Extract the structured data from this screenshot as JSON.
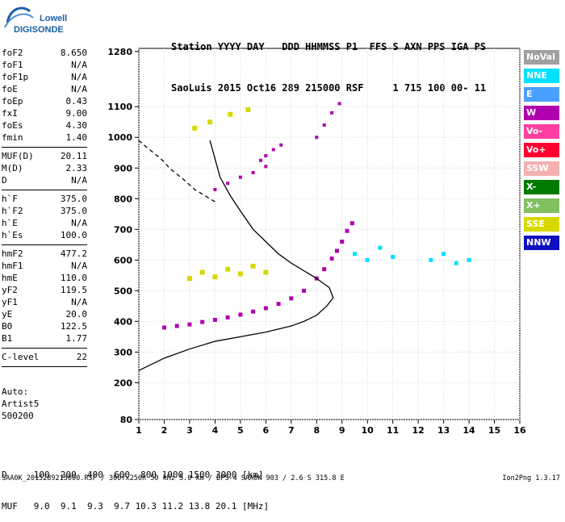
{
  "logo": {
    "line1": "Lowell",
    "line2": "DIGISONDE"
  },
  "header": {
    "line1": "Station YYYY DAY   DDD HHMMSS P1  FFS S AXN PPS IGA PS",
    "line2": "SaoLuis 2015 Oct16 289 215000 RSF     1 715 100 00- 11"
  },
  "params": [
    {
      "name": "foF2",
      "value": "8.650"
    },
    {
      "name": "foF1",
      "value": "N/A"
    },
    {
      "name": "foF1p",
      "value": "N/A"
    },
    {
      "name": "foE",
      "value": "N/A"
    },
    {
      "name": "foEp",
      "value": "0.43"
    },
    {
      "name": "fxI",
      "value": "9.00"
    },
    {
      "name": "foEs",
      "value": "4.30"
    },
    {
      "name": "fmin",
      "value": "1.40"
    },
    {
      "name": "MUF(D)",
      "value": "20.11"
    },
    {
      "name": "M(D)",
      "value": "2.33"
    },
    {
      "name": "D",
      "value": "N/A"
    },
    {
      "name": "h`F",
      "value": "375.0"
    },
    {
      "name": "h`F2",
      "value": "375.0"
    },
    {
      "name": "h`E",
      "value": "N/A"
    },
    {
      "name": "h`Es",
      "value": "100.0"
    },
    {
      "name": "hmF2",
      "value": "477.2"
    },
    {
      "name": "hmF1",
      "value": "N/A"
    },
    {
      "name": "hmE",
      "value": "110.0"
    },
    {
      "name": "yF2",
      "value": "119.5"
    },
    {
      "name": "yF1",
      "value": "N/A"
    },
    {
      "name": "yE",
      "value": "20.0"
    },
    {
      "name": "B0",
      "value": "122.5"
    },
    {
      "name": "B1",
      "value": "1.77"
    },
    {
      "name": "C-level",
      "value": "22"
    }
  ],
  "auto": {
    "line1": "Auto:",
    "line2": "Artist5",
    "line3": "500200"
  },
  "muf_table": {
    "line1": "D     100  200  400  600  800 1000 1500 3000 [km]",
    "line2": "MUF   9.0  9.1  9.3  9.7 10.3 11.2 13.8 20.1 [MHz]"
  },
  "footer": "SAA0K_2015289215000.RSF / 300fx256h 50 kHz 5.0 km / DPS-4 SAA0K 903 / 2.6 S 315.8 E",
  "version": "Ion2Png 1.3.17",
  "legend": [
    {
      "label": "NoVal",
      "color": "#a0a0a0"
    },
    {
      "label": "NNE",
      "color": "#00e0ff"
    },
    {
      "label": "E",
      "color": "#4aa0ff"
    },
    {
      "label": "W",
      "color": "#b000b0"
    },
    {
      "label": "Vo-",
      "color": "#ff40a0"
    },
    {
      "label": "Vo+",
      "color": "#ff0030"
    },
    {
      "label": "SSW",
      "color": "#f4b0b0"
    },
    {
      "label": "X-",
      "color": "#007a00"
    },
    {
      "label": "X+",
      "color": "#80c060"
    },
    {
      "label": "SSE",
      "color": "#d8d800"
    },
    {
      "label": "NNW",
      "color": "#1010c0"
    }
  ],
  "chart_data": {
    "type": "scatter",
    "xlabel": "",
    "ylabel": "",
    "xlim": [
      1,
      16
    ],
    "ylim": [
      80,
      1290
    ],
    "x_ticks": [
      1,
      2,
      3,
      4,
      5,
      6,
      7,
      8,
      9,
      10,
      11,
      12,
      13,
      14,
      15,
      16
    ],
    "y_ticks": [
      80,
      200,
      300,
      400,
      500,
      600,
      700,
      800,
      900,
      1000,
      1100,
      1280
    ],
    "grid": true,
    "f_trace": {
      "name": "",
      "color": "#b000b0",
      "x": [
        2.0,
        2.5,
        3.0,
        3.5,
        4.0,
        4.5,
        5.0,
        5.5,
        6.0,
        6.5,
        7.0,
        7.5,
        8.0,
        8.3,
        8.6,
        8.8,
        9.0,
        9.2,
        9.4
      ],
      "y": [
        380,
        385,
        390,
        398,
        405,
        413,
        422,
        432,
        443,
        457,
        475,
        500,
        540,
        570,
        605,
        630,
        660,
        695,
        720
      ]
    },
    "f_second_hop": {
      "name": "",
      "color": "#b000b0",
      "x": [
        4.0,
        4.5,
        5.0,
        5.5,
        6.0
      ],
      "y": [
        830,
        850,
        870,
        885,
        905
      ]
    },
    "f_third_hop": {
      "name": "",
      "color": "#b000b0",
      "x": [
        5.8,
        6.0,
        6.3,
        6.6
      ],
      "y": [
        925,
        940,
        960,
        975
      ]
    },
    "high_trace": {
      "name": "",
      "color": "#b000b0",
      "x": [
        8.0,
        8.3,
        8.6,
        8.9
      ],
      "y": [
        1000,
        1040,
        1080,
        1110
      ]
    },
    "es_cloud": {
      "name": "",
      "color": "#d8d800",
      "x": [
        3.0,
        3.5,
        4.0,
        4.5,
        5.0,
        5.5,
        6.0,
        3.2,
        3.8,
        4.6,
        5.3
      ],
      "y": [
        540,
        560,
        545,
        570,
        555,
        580,
        560,
        1030,
        1050,
        1075,
        1090
      ]
    },
    "spread_blobs": {
      "name": "",
      "color": "#00e0ff",
      "x": [
        9.5,
        10.0,
        10.5,
        11.0,
        12.5,
        13.0,
        13.5,
        14.0
      ],
      "y": [
        620,
        600,
        640,
        610,
        600,
        620,
        590,
        600
      ]
    },
    "profile": {
      "name": "",
      "color": "#000000",
      "x": [
        1.0,
        2.0,
        3.0,
        4.0,
        5.0,
        6.0,
        7.0,
        7.5,
        8.0,
        8.4,
        8.65,
        8.5,
        8.0,
        7.5,
        7.0,
        6.5,
        6.0,
        5.5,
        5.0,
        4.6,
        4.2,
        3.8
      ],
      "y": [
        240,
        280,
        310,
        335,
        350,
        365,
        385,
        400,
        420,
        450,
        477,
        510,
        540,
        565,
        590,
        620,
        660,
        700,
        760,
        810,
        870,
        990
      ]
    },
    "profile_dashed": {
      "name": "",
      "color": "#000000",
      "x": [
        4.0,
        3.8,
        3.5,
        3.2,
        3.0,
        2.8,
        2.5,
        2.2,
        2.0,
        1.8,
        1.5,
        1.2,
        1.0
      ],
      "y": [
        790,
        800,
        815,
        830,
        845,
        860,
        880,
        900,
        920,
        935,
        955,
        975,
        990
      ]
    }
  }
}
